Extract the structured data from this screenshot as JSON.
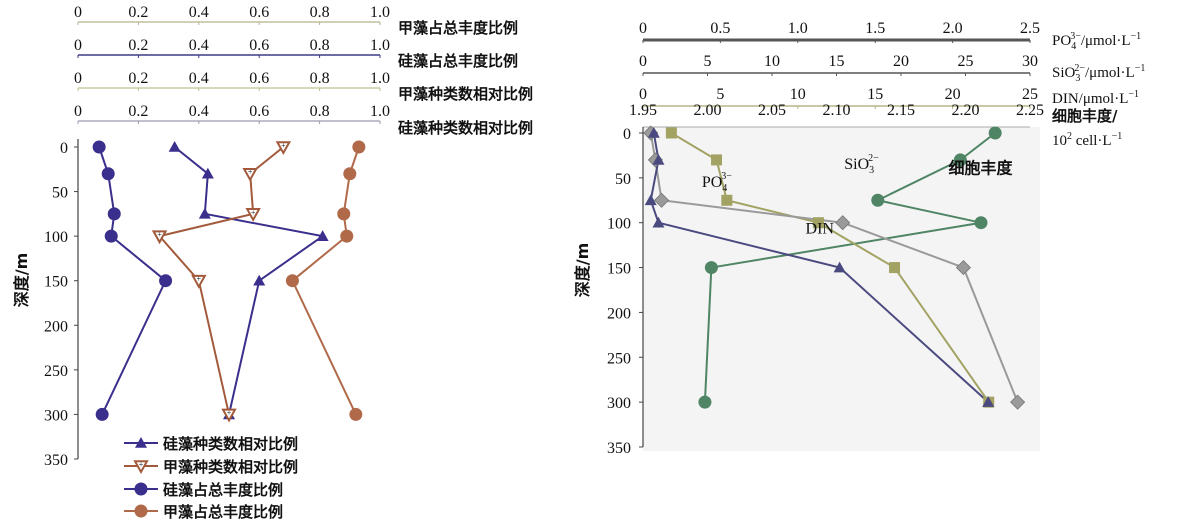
{
  "chart_data": [
    {
      "type": "line",
      "y_axis": {
        "label": "深度/m",
        "ticks": [
          0,
          50,
          100,
          150,
          200,
          250,
          300,
          350
        ],
        "range": [
          0,
          350
        ],
        "reversed": true
      },
      "x_axes": [
        {
          "label": "甲藻占总丰度比例",
          "range": [
            0,
            1.0
          ],
          "ticks": [
            "0",
            "0.2",
            "0.4",
            "0.6",
            "0.8",
            "1.0"
          ],
          "color": "#b5b58a"
        },
        {
          "label": "硅藻占总丰度比例",
          "range": [
            0,
            1.0
          ],
          "ticks": [
            "0",
            "0.2",
            "0.4",
            "0.6",
            "0.8",
            "1.0"
          ],
          "color": "#3c3c8a"
        },
        {
          "label": "甲藻种类数相对比例",
          "range": [
            0,
            1.0
          ],
          "ticks": [
            "0",
            "0.2",
            "0.4",
            "0.6",
            "0.8",
            "1.0"
          ],
          "color": "#c0c090"
        },
        {
          "label": "硅藻种类数相对比例",
          "range": [
            0,
            1.0
          ],
          "ticks": [
            "0",
            "0.2",
            "0.4",
            "0.6",
            "0.8",
            "1.0"
          ],
          "color": "#9a9ab0"
        }
      ],
      "series": [
        {
          "name": "硅藻种类数相对比例",
          "marker": "triangle",
          "color": "#3a2f8c",
          "points": [
            [
              0.32,
              0
            ],
            [
              0.43,
              30
            ],
            [
              0.42,
              75
            ],
            [
              0.81,
              100
            ],
            [
              0.6,
              150
            ],
            [
              0.5,
              300
            ]
          ]
        },
        {
          "name": "甲藻种类数相对比例",
          "marker": "triangle-down",
          "color": "#a35a3c",
          "points": [
            [
              0.68,
              0
            ],
            [
              0.57,
              30
            ],
            [
              0.58,
              75
            ],
            [
              0.27,
              100
            ],
            [
              0.4,
              150
            ],
            [
              0.5,
              300
            ]
          ]
        },
        {
          "name": "硅藻占总丰度比例",
          "marker": "circle",
          "color": "#3a2f8c",
          "points": [
            [
              0.07,
              0
            ],
            [
              0.1,
              30
            ],
            [
              0.12,
              75
            ],
            [
              0.11,
              100
            ],
            [
              0.29,
              150
            ],
            [
              0.08,
              300
            ]
          ]
        },
        {
          "name": "甲藻占总丰度比例",
          "marker": "circle",
          "color": "#b06a4a",
          "points": [
            [
              0.93,
              0
            ],
            [
              0.9,
              30
            ],
            [
              0.88,
              75
            ],
            [
              0.89,
              100
            ],
            [
              0.71,
              150
            ],
            [
              0.92,
              300
            ]
          ]
        }
      ],
      "legend": {
        "placement": "bottom-left"
      }
    },
    {
      "type": "line",
      "y_axis": {
        "label": "深度/m",
        "ticks": [
          0,
          50,
          100,
          150,
          200,
          250,
          300,
          350
        ],
        "range": [
          0,
          350
        ],
        "reversed": true
      },
      "x_axes": [
        {
          "label_main": "PO",
          "label_sub": "4",
          "label_sup": "3−",
          "label_rest": "/μmol·L",
          "label_exp": "−1",
          "range": [
            0,
            2.5
          ],
          "ticks": [
            "0",
            "0.5",
            "1.0",
            "1.5",
            "2.0",
            "2.5"
          ],
          "color": "#555555"
        },
        {
          "label_main": "SiO",
          "label_sub": "3",
          "label_sup": "2−",
          "label_rest": "/μmol·L",
          "label_exp": "−1",
          "range": [
            0,
            30
          ],
          "ticks": [
            "0",
            "5",
            "10",
            "15",
            "20",
            "25",
            "30"
          ],
          "color": "#555555"
        },
        {
          "label_main": "DIN",
          "label_sub": "",
          "label_sup": "",
          "label_rest": "/μmol·L",
          "label_exp": "−1",
          "range": [
            0,
            25
          ],
          "ticks": [
            "0",
            "5",
            "10",
            "15",
            "20",
            "25"
          ],
          "color": "#b5b58a"
        },
        {
          "label_main": "细胞丰度/",
          "label_line2": "10",
          "label_line2_sup": "2",
          "label_line2_rest": " cell·L",
          "label_line2_exp": "−1",
          "range": [
            1.95,
            2.25
          ],
          "ticks": [
            "1.95",
            "2.00",
            "2.05",
            "2.10",
            "2.15",
            "2.20",
            "2.25"
          ],
          "color": "#999999"
        }
      ],
      "series": [
        {
          "name": "PO4",
          "axis": 0,
          "marker": "triangle",
          "color": "#4a4a80",
          "points": [
            [
              0.07,
              0
            ],
            [
              0.1,
              30
            ],
            [
              0.05,
              75
            ],
            [
              0.1,
              100
            ],
            [
              1.27,
              150
            ],
            [
              2.23,
              300
            ]
          ]
        },
        {
          "name": "SiO3",
          "axis": 1,
          "marker": "square",
          "color": "#a2a263",
          "points": [
            [
              2.2,
              0
            ],
            [
              5.7,
              30
            ],
            [
              6.5,
              75
            ],
            [
              13.6,
              100
            ],
            [
              19.5,
              150
            ],
            [
              26.8,
              300
            ]
          ]
        },
        {
          "name": "DIN",
          "axis": 2,
          "marker": "diamond",
          "color": "#9a9a9a",
          "points": [
            [
              0.5,
              0
            ],
            [
              0.8,
              30
            ],
            [
              1.2,
              75
            ],
            [
              12.9,
              100
            ],
            [
              20.7,
              150
            ],
            [
              24.2,
              300
            ]
          ]
        },
        {
          "name": "细胞丰度",
          "axis": 3,
          "marker": "circle",
          "color": "#4f8565",
          "points": [
            [
              2.223,
              0
            ],
            [
              2.196,
              30
            ],
            [
              2.132,
              75
            ],
            [
              2.212,
              100
            ],
            [
              2.003,
              150
            ],
            [
              1.998,
              300
            ]
          ]
        }
      ],
      "annotations": [
        {
          "text_main": "SiO",
          "text_sub": "3",
          "text_sup": "2−",
          "depth": 40,
          "at_x": 1.3,
          "axis": 0
        },
        {
          "text_main": "PO",
          "text_sub": "4",
          "text_sup": "3−",
          "depth": 60,
          "at_x": 0.38,
          "axis": 0
        },
        {
          "text_main": "DIN",
          "depth": 112,
          "at_x": 1.05,
          "axis": 0
        },
        {
          "text_main": "细胞丰度",
          "depth": 45,
          "at_x": 2.2,
          "axis": 0
        }
      ]
    }
  ]
}
